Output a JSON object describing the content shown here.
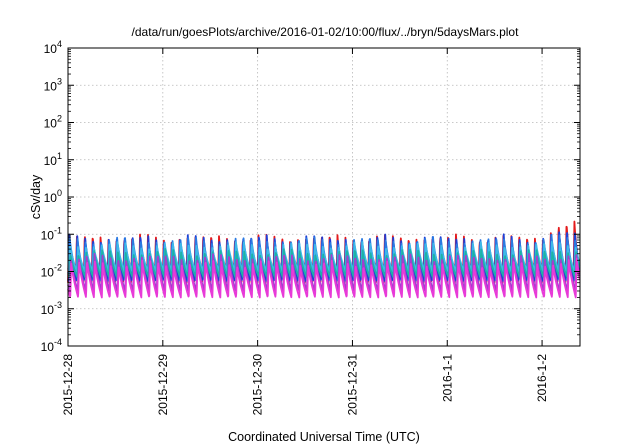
{
  "chart_data": {
    "type": "line",
    "title": "/data/run/goesPlots/archive/2016-01-02/10:00/flux/../bryn/5daysMars.plot",
    "xlabel": "Coordinated Universal Time (UTC)",
    "ylabel": "cSv/day",
    "x_start": "2015-12-28",
    "x_end": "2016-01-02 12:00",
    "xlim_days": [
      0,
      5.4
    ],
    "yscale": "log",
    "ylim": [
      0.0001,
      10000
    ],
    "grid": true,
    "x_ticks": [
      {
        "label": "2015-12-28",
        "day": 0
      },
      {
        "label": "2015-12-29",
        "day": 1
      },
      {
        "label": "2015-12-30",
        "day": 2
      },
      {
        "label": "2015-12-31",
        "day": 3
      },
      {
        "label": "2016-1-1",
        "day": 4
      },
      {
        "label": "2016-1-2",
        "day": 5
      }
    ],
    "y_ticks": [
      {
        "base": "10",
        "exp": "-4",
        "value": 0.0001
      },
      {
        "base": "10",
        "exp": "-3",
        "value": 0.001
      },
      {
        "base": "10",
        "exp": "-2",
        "value": 0.01
      },
      {
        "base": "10",
        "exp": "-1",
        "value": 0.1
      },
      {
        "base": "10",
        "exp": "0",
        "value": 1
      },
      {
        "base": "10",
        "exp": "1",
        "value": 10
      },
      {
        "base": "10",
        "exp": "2",
        "value": 100
      },
      {
        "base": "10",
        "exp": "3",
        "value": 1000
      },
      {
        "base": "10",
        "exp": "4",
        "value": 10000
      }
    ],
    "cycle_period_days": 0.0833,
    "series": [
      {
        "color": "#e41a1c",
        "peak": 0.09,
        "trough": 0.005,
        "late_peak": 0.2
      },
      {
        "color": "#1f3fd6",
        "peak": 0.085,
        "trough": 0.0055,
        "late_peak": 0.12
      },
      {
        "color": "#2a7ae2",
        "peak": 0.075,
        "trough": 0.008,
        "late_peak": 0.09
      },
      {
        "color": "#3eb8e8",
        "peak": 0.055,
        "trough": 0.01,
        "late_peak": 0.06
      },
      {
        "color": "#1db3a6",
        "peak": 0.035,
        "trough": 0.007,
        "late_peak": 0.04
      },
      {
        "color": "#a23fd0",
        "peak": 0.026,
        "trough": 0.003,
        "late_peak": 0.028
      },
      {
        "color": "#e83ad8",
        "peak": 0.018,
        "trough": 0.002,
        "late_peak": 0.02
      }
    ]
  }
}
